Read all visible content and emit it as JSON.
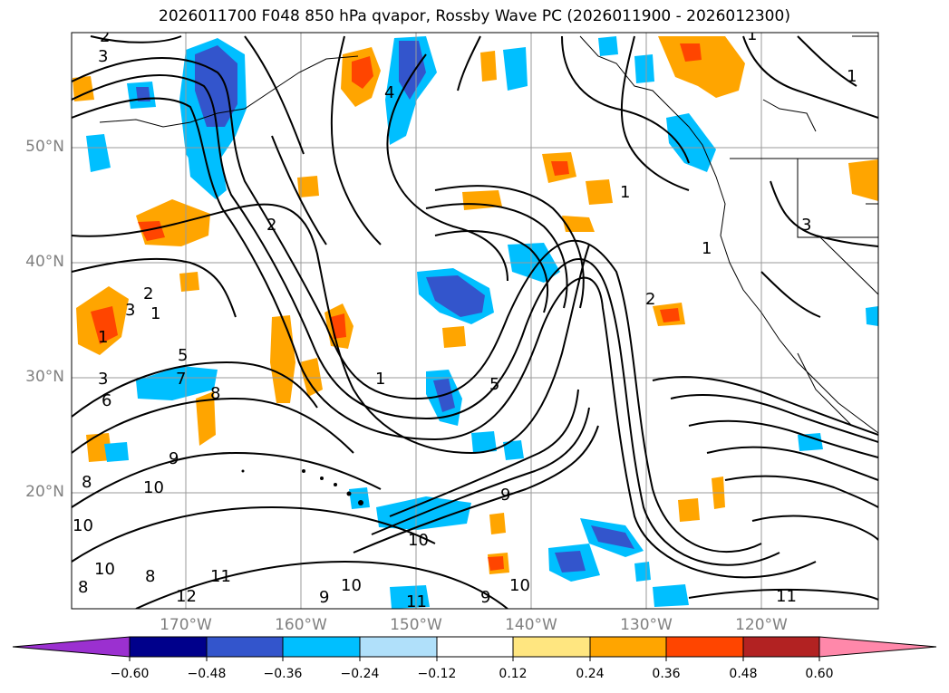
{
  "title": "2026011700 F048 850 hPa qvapor, Rossby Wave PC (2026011900 - 2026012300)",
  "lat_labels": [
    "50°N",
    "40°N",
    "30°N",
    "20°N"
  ],
  "lon_labels": [
    "170°W",
    "160°W",
    "150°W",
    "140°W",
    "130°W",
    "120°W"
  ],
  "colorbar": {
    "tick_labels": [
      "−0.60",
      "−0.48",
      "−0.36",
      "−0.24",
      "−0.12",
      "0.12",
      "0.24",
      "0.36",
      "0.48",
      "0.60"
    ],
    "colors": [
      "#9b30d0",
      "#00008b",
      "#3355cc",
      "#00bfff",
      "#b0e0fa",
      "#ffffff",
      "#ffe680",
      "#ffa500",
      "#ff4500",
      "#b22222",
      "#ff88aa"
    ]
  },
  "contour_labels": [
    "2",
    "3",
    "3",
    "1",
    "2",
    "1",
    "5",
    "3",
    "6",
    "7",
    "8",
    "9",
    "10",
    "8",
    "10",
    "10",
    "8",
    "8",
    "12",
    "11",
    "9",
    "10",
    "11",
    "9",
    "10",
    "9",
    "10",
    "11",
    "1",
    "2",
    "1",
    "1",
    "3",
    "1",
    "1",
    "2",
    "4",
    "5"
  ]
}
